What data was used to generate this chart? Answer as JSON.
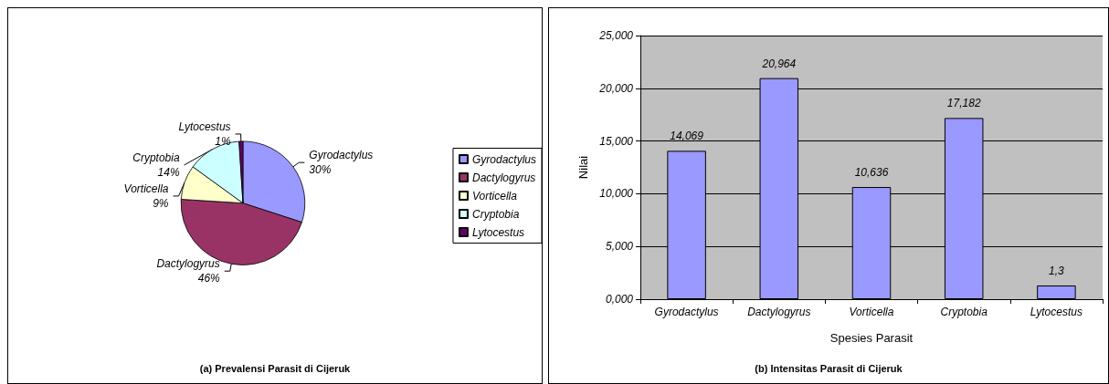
{
  "chart_data": [
    {
      "type": "pie",
      "title": "(a) Prevalensi Parasit di Cijeruk",
      "categories": [
        "Gyrodactylus",
        "Dactylogyrus",
        "Vorticella",
        "Cryptobia",
        "Lytocestus"
      ],
      "values": [
        30,
        46,
        9,
        14,
        1
      ],
      "colors": [
        "#9999ff",
        "#993366",
        "#ffffcc",
        "#ccffff",
        "#660066"
      ],
      "value_labels": [
        "30%",
        "46%",
        "9%",
        "14%",
        "1%"
      ],
      "legend": "right"
    },
    {
      "type": "bar",
      "title": "(b) Intensitas Parasit di Cijeruk",
      "xlabel": "Spesies Parasit",
      "ylabel": "Nilai",
      "categories": [
        "Gyrodactylus",
        "Dactylogyrus",
        "Vorticella",
        "Cryptobia",
        "Lytocestus"
      ],
      "values": [
        14.069,
        20.964,
        10.636,
        17.182,
        1.3
      ],
      "color": "#9999ff",
      "value_labels": [
        "14,069",
        "20,964",
        "10,636",
        "17,182",
        "1,3"
      ],
      "ylim": [
        0,
        25
      ],
      "yticks": [
        {
          "value": 0,
          "label": "0,000"
        },
        {
          "value": 5,
          "label": "5,000"
        },
        {
          "value": 10,
          "label": "10,000"
        },
        {
          "value": 15,
          "label": "15,000"
        },
        {
          "value": 20,
          "label": "20,000"
        },
        {
          "value": 25,
          "label": "25,000"
        }
      ],
      "grid": "y"
    }
  ]
}
